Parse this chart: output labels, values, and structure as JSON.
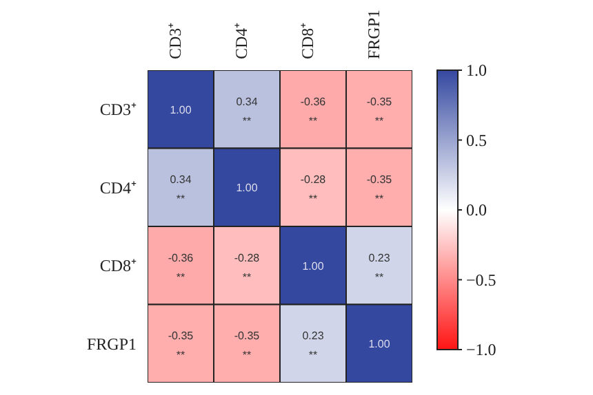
{
  "chart_data": {
    "type": "heatmap",
    "categories": [
      "CD3⁺",
      "CD4⁺",
      "CD8⁺",
      "FRGP1"
    ],
    "y_categories": [
      "CD3⁺",
      "CD4⁺",
      "CD8⁺",
      "FRGP1"
    ],
    "cells": [
      [
        1.0,
        0.34,
        -0.36,
        -0.35
      ],
      [
        0.34,
        1.0,
        -0.28,
        -0.35
      ],
      [
        -0.36,
        -0.28,
        1.0,
        0.23
      ],
      [
        -0.35,
        -0.35,
        0.23,
        1.0
      ]
    ],
    "cell_labels": [
      [
        "1.00",
        "0.34\n**",
        "-0.36\n**",
        "-0.35\n**"
      ],
      [
        "0.34\n**",
        "1.00",
        "-0.28\n**",
        "-0.35\n**"
      ],
      [
        "-0.36\n**",
        "-0.28\n**",
        "1.00",
        "0.23\n**"
      ],
      [
        "-0.35\n**",
        "-0.35\n**",
        "0.23\n**",
        "1.00"
      ]
    ],
    "clim": [
      -1,
      1
    ],
    "cticks": [
      {
        "value": -1,
        "label": "−1.0"
      },
      {
        "value": -0.5,
        "label": "−0.5"
      },
      {
        "value": 0,
        "label": "0.0"
      },
      {
        "value": 0.5,
        "label": "0.5"
      },
      {
        "value": 1,
        "label": "1.0"
      }
    ]
  }
}
